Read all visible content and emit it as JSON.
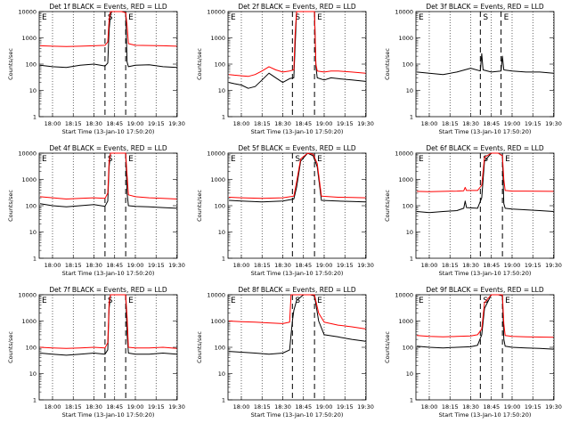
{
  "chart_data": [
    {
      "type": "line",
      "title": "Det 1f BLACK = Events, RED = LLD",
      "xlabel": "Start Time (13-Jan-10 17:50:20)",
      "ylabel": "Counts/sec",
      "yscale": "log",
      "ylim": [
        1,
        10000
      ],
      "yticks": [
        "1",
        "10",
        "100",
        "1000",
        "10000"
      ],
      "xticks": [
        "18:00",
        "18:15",
        "18:30",
        "18:45",
        "19:00",
        "19:15",
        "19:30"
      ],
      "markers": [
        "E",
        "S",
        "E"
      ],
      "series": [
        {
          "name": "BLACK = Events",
          "color": "#000000",
          "x": [
            "17:51",
            "18:00",
            "18:10",
            "18:20",
            "18:30",
            "18:38",
            "18:40",
            "18:41",
            "18:42",
            "18:43",
            "18:50",
            "18:53",
            "18:54",
            "18:55",
            "19:00",
            "19:10",
            "19:20",
            "19:30"
          ],
          "y": [
            90,
            80,
            75,
            90,
            100,
            85,
            110,
            2000,
            8000,
            11000,
            12000,
            10000,
            120,
            80,
            90,
            95,
            80,
            75
          ]
        },
        {
          "name": "RED = LLD",
          "color": "#ff0000",
          "x": [
            "17:51",
            "18:00",
            "18:10",
            "18:20",
            "18:30",
            "18:38",
            "18:40",
            "18:41",
            "18:42",
            "18:43",
            "18:50",
            "18:53",
            "18:54",
            "18:55",
            "19:00",
            "19:10",
            "19:20",
            "19:30"
          ],
          "y": [
            500,
            480,
            470,
            480,
            500,
            520,
            700,
            5000,
            10000,
            11000,
            12000,
            9000,
            3000,
            600,
            520,
            510,
            500,
            480
          ]
        }
      ]
    },
    {
      "type": "line",
      "title": "Det 2f BLACK = Events, RED = LLD",
      "xlabel": "Start Time (13-Jan-10 17:50:20)",
      "ylabel": "Counts/sec",
      "yscale": "log",
      "ylim": [
        1,
        10000
      ],
      "yticks": [
        "1",
        "10",
        "100",
        "1000",
        "10000"
      ],
      "xticks": [
        "18:00",
        "18:15",
        "18:30",
        "18:45",
        "19:00",
        "19:15",
        "19:30"
      ],
      "markers": [
        "E",
        "S",
        "E"
      ],
      "series": [
        {
          "name": "BLACK = Events",
          "color": "#000000",
          "x": [
            "17:51",
            "17:55",
            "18:00",
            "18:05",
            "18:10",
            "18:15",
            "18:20",
            "18:25",
            "18:30",
            "18:35",
            "18:38",
            "18:39",
            "18:40",
            "18:53",
            "18:54",
            "18:55",
            "19:00",
            "19:05",
            "19:10",
            "19:20",
            "19:30"
          ],
          "y": [
            20,
            18,
            16,
            12,
            14,
            25,
            45,
            30,
            20,
            28,
            30,
            500,
            12000,
            12000,
            80,
            30,
            25,
            30,
            28,
            25,
            22
          ]
        },
        {
          "name": "RED = LLD",
          "color": "#ff0000",
          "x": [
            "17:51",
            "17:55",
            "18:00",
            "18:05",
            "18:10",
            "18:15",
            "18:20",
            "18:25",
            "18:30",
            "18:35",
            "18:38",
            "18:39",
            "18:40",
            "18:53",
            "18:54",
            "18:55",
            "19:00",
            "19:05",
            "19:10",
            "19:20",
            "19:30"
          ],
          "y": [
            40,
            38,
            36,
            34,
            40,
            55,
            80,
            60,
            50,
            55,
            60,
            1500,
            12000,
            12000,
            100,
            55,
            50,
            55,
            55,
            50,
            45
          ]
        }
      ]
    },
    {
      "type": "line",
      "title": "Det 3f BLACK = Events, RED = LLD",
      "xlabel": "Start Time (13-Jan-10 17:50:20)",
      "ylabel": "Counts/sec",
      "yscale": "log",
      "ylim": [
        1,
        10000
      ],
      "yticks": [
        "1",
        "10",
        "100",
        "1000",
        "10000"
      ],
      "xticks": [
        "18:00",
        "18:15",
        "18:30",
        "18:45",
        "19:00",
        "19:15",
        "19:30"
      ],
      "markers": [
        "E",
        "S",
        "E"
      ],
      "series": [
        {
          "name": "BLACK = Events",
          "color": "#000000",
          "x": [
            "17:51",
            "18:00",
            "18:10",
            "18:20",
            "18:30",
            "18:37",
            "18:38",
            "18:39",
            "18:45",
            "18:52",
            "18:53",
            "18:54",
            "19:00",
            "19:10",
            "19:20",
            "19:30"
          ],
          "y": [
            50,
            45,
            40,
            50,
            70,
            55,
            250,
            60,
            50,
            55,
            200,
            60,
            55,
            50,
            50,
            45
          ]
        }
      ]
    },
    {
      "type": "line",
      "title": "Det 4f BLACK = Events, RED = LLD",
      "xlabel": "Start Time (13-Jan-10 17:50:20)",
      "ylabel": "Counts/sec",
      "yscale": "log",
      "ylim": [
        1,
        10000
      ],
      "yticks": [
        "1",
        "10",
        "100",
        "1000",
        "10000"
      ],
      "xticks": [
        "18:00",
        "18:15",
        "18:30",
        "18:45",
        "19:00",
        "19:15",
        "19:30"
      ],
      "markers": [
        "E",
        "S",
        "E"
      ],
      "series": [
        {
          "name": "BLACK = Events",
          "color": "#000000",
          "x": [
            "17:51",
            "18:00",
            "18:10",
            "18:20",
            "18:30",
            "18:38",
            "18:40",
            "18:41",
            "18:42",
            "18:50",
            "18:53",
            "18:54",
            "18:55",
            "19:00",
            "19:10",
            "19:20",
            "19:30"
          ],
          "y": [
            120,
            100,
            90,
            100,
            110,
            95,
            150,
            3000,
            11000,
            12000,
            10000,
            300,
            100,
            95,
            90,
            85,
            80
          ]
        },
        {
          "name": "RED = LLD",
          "color": "#ff0000",
          "x": [
            "17:51",
            "18:00",
            "18:10",
            "18:20",
            "18:30",
            "18:38",
            "18:40",
            "18:41",
            "18:42",
            "18:50",
            "18:53",
            "18:54",
            "18:55",
            "19:00",
            "19:10",
            "19:20",
            "19:30"
          ],
          "y": [
            220,
            200,
            180,
            190,
            200,
            190,
            300,
            5000,
            11000,
            12000,
            10000,
            1500,
            260,
            220,
            200,
            190,
            180
          ]
        }
      ]
    },
    {
      "type": "line",
      "title": "Det 5f BLACK = Events, RED = LLD",
      "xlabel": "Start Time (13-Jan-10 17:50:20)",
      "ylabel": "Counts/sec",
      "yscale": "log",
      "ylim": [
        1,
        10000
      ],
      "yticks": [
        "1",
        "10",
        "100",
        "1000",
        "10000"
      ],
      "xticks": [
        "18:00",
        "18:15",
        "18:30",
        "18:45",
        "19:00",
        "19:15",
        "19:30"
      ],
      "markers": [
        "E",
        "S",
        "E"
      ],
      "series": [
        {
          "name": "BLACK = Events",
          "color": "#000000",
          "x": [
            "17:51",
            "18:00",
            "18:15",
            "18:30",
            "18:38",
            "18:40",
            "18:43",
            "18:48",
            "18:52",
            "18:55",
            "18:58",
            "19:10",
            "19:20",
            "19:30"
          ],
          "y": [
            160,
            150,
            140,
            150,
            180,
            500,
            5000,
            10000,
            8000,
            3000,
            160,
            150,
            145,
            140
          ]
        },
        {
          "name": "RED = LLD",
          "color": "#ff0000",
          "x": [
            "17:51",
            "18:00",
            "18:15",
            "18:30",
            "18:38",
            "18:40",
            "18:43",
            "18:48",
            "18:52",
            "18:55",
            "18:58",
            "19:10",
            "19:20",
            "19:30"
          ],
          "y": [
            210,
            200,
            190,
            200,
            230,
            800,
            6000,
            11000,
            9000,
            4000,
            230,
            210,
            205,
            200
          ]
        }
      ]
    },
    {
      "type": "line",
      "title": "Det 6f BLACK = Events, RED = LLD",
      "xlabel": "Start Time (13-Jan-10 17:50:20)",
      "ylabel": "Counts/sec",
      "yscale": "log",
      "ylim": [
        1,
        10000
      ],
      "yticks": [
        "1",
        "10",
        "100",
        "1000",
        "10000"
      ],
      "xticks": [
        "18:00",
        "18:15",
        "18:30",
        "18:45",
        "19:00",
        "19:15",
        "19:30"
      ],
      "markers": [
        "E",
        "S",
        "E"
      ],
      "series": [
        {
          "name": "BLACK = Events",
          "color": "#000000",
          "x": [
            "17:51",
            "18:00",
            "18:10",
            "18:20",
            "18:25",
            "18:26",
            "18:27",
            "18:35",
            "18:38",
            "18:40",
            "18:45",
            "18:50",
            "18:53",
            "18:54",
            "18:55",
            "19:00",
            "19:10",
            "19:20",
            "19:30"
          ],
          "y": [
            60,
            55,
            60,
            65,
            80,
            150,
            85,
            80,
            200,
            5000,
            10000,
            10000,
            8000,
            120,
            80,
            75,
            70,
            65,
            60
          ]
        },
        {
          "name": "RED = LLD",
          "color": "#ff0000",
          "x": [
            "17:51",
            "18:00",
            "18:10",
            "18:20",
            "18:25",
            "18:26",
            "18:27",
            "18:35",
            "18:38",
            "18:40",
            "18:45",
            "18:50",
            "18:53",
            "18:54",
            "18:55",
            "19:00",
            "19:10",
            "19:20",
            "19:30"
          ],
          "y": [
            350,
            340,
            350,
            360,
            370,
            500,
            380,
            380,
            600,
            7000,
            11000,
            10000,
            8000,
            1000,
            380,
            360,
            360,
            355,
            350
          ]
        }
      ]
    },
    {
      "type": "line",
      "title": "Det 7f BLACK = Events, RED = LLD",
      "xlabel": "Start Time (13-Jan-10 17:50:20)",
      "ylabel": "Counts/sec",
      "yscale": "log",
      "ylim": [
        1,
        10000
      ],
      "yticks": [
        "1",
        "10",
        "100",
        "1000",
        "10000"
      ],
      "xticks": [
        "18:00",
        "18:15",
        "18:30",
        "18:45",
        "19:00",
        "19:15",
        "19:30"
      ],
      "markers": [
        "E",
        "S",
        "E"
      ],
      "series": [
        {
          "name": "BLACK = Events",
          "color": "#000000",
          "x": [
            "17:51",
            "18:00",
            "18:10",
            "18:20",
            "18:30",
            "18:38",
            "18:40",
            "18:41",
            "18:42",
            "18:50",
            "18:53",
            "18:54",
            "18:55",
            "19:00",
            "19:10",
            "19:20",
            "19:30"
          ],
          "y": [
            60,
            55,
            50,
            55,
            60,
            55,
            80,
            3000,
            11000,
            12000,
            10000,
            300,
            60,
            55,
            55,
            60,
            55
          ]
        },
        {
          "name": "RED = LLD",
          "color": "#ff0000",
          "x": [
            "17:51",
            "18:00",
            "18:10",
            "18:20",
            "18:30",
            "18:38",
            "18:40",
            "18:41",
            "18:42",
            "18:50",
            "18:53",
            "18:54",
            "18:55",
            "19:00",
            "19:10",
            "19:20",
            "19:30"
          ],
          "y": [
            100,
            95,
            90,
            95,
            100,
            95,
            150,
            5000,
            11000,
            12000,
            10000,
            1500,
            100,
            95,
            95,
            100,
            90
          ]
        }
      ]
    },
    {
      "type": "line",
      "title": "Det 8f BLACK = Events, RED = LLD",
      "xlabel": "Start Time (13-Jan-10 17:50:20)",
      "ylabel": "Counts/sec",
      "yscale": "log",
      "ylim": [
        1,
        10000
      ],
      "yticks": [
        "1",
        "10",
        "100",
        "1000",
        "10000"
      ],
      "xticks": [
        "18:00",
        "18:15",
        "18:30",
        "18:45",
        "19:00",
        "19:15",
        "19:30"
      ],
      "markers": [
        "E",
        "S",
        "E"
      ],
      "series": [
        {
          "name": "BLACK = Events",
          "color": "#000000",
          "x": [
            "17:51",
            "18:00",
            "18:10",
            "18:20",
            "18:30",
            "18:35",
            "18:36",
            "18:37",
            "18:38",
            "18:40",
            "18:45",
            "18:50",
            "18:53",
            "18:56",
            "19:00",
            "19:10",
            "19:20",
            "19:30"
          ],
          "y": [
            70,
            65,
            60,
            55,
            60,
            80,
            300,
            1000,
            2500,
            6000,
            10000,
            11000,
            9000,
            1000,
            300,
            250,
            200,
            170
          ]
        },
        {
          "name": "RED = LLD",
          "color": "#ff0000",
          "x": [
            "17:51",
            "18:00",
            "18:10",
            "18:20",
            "18:30",
            "18:35",
            "18:36",
            "18:37",
            "18:38",
            "18:40",
            "18:45",
            "18:50",
            "18:53",
            "18:56",
            "19:00",
            "19:10",
            "19:20",
            "19:30"
          ],
          "y": [
            1000,
            950,
            900,
            850,
            800,
            900,
            12000,
            12000,
            12000,
            12000,
            12000,
            12000,
            10000,
            2000,
            900,
            700,
            600,
            500
          ]
        }
      ]
    },
    {
      "type": "line",
      "title": "Det 9f BLACK = Events, RED = LLD",
      "xlabel": "Start Time (13-Jan-10 17:50:20)",
      "ylabel": "Counts/sec",
      "yscale": "log",
      "ylim": [
        1,
        10000
      ],
      "yticks": [
        "1",
        "10",
        "100",
        "1000",
        "10000"
      ],
      "xticks": [
        "18:00",
        "18:15",
        "18:30",
        "18:45",
        "19:00",
        "19:15",
        "19:30"
      ],
      "markers": [
        "E",
        "S",
        "E"
      ],
      "series": [
        {
          "name": "BLACK = Events",
          "color": "#000000",
          "x": [
            "17:51",
            "18:00",
            "18:10",
            "18:20",
            "18:30",
            "18:35",
            "18:38",
            "18:40",
            "18:45",
            "18:50",
            "18:53",
            "18:54",
            "18:55",
            "19:00",
            "19:10",
            "19:20",
            "19:30"
          ],
          "y": [
            110,
            100,
            95,
            100,
            105,
            120,
            300,
            3000,
            10000,
            11000,
            9000,
            200,
            110,
            100,
            95,
            90,
            85
          ]
        },
        {
          "name": "RED = LLD",
          "color": "#ff0000",
          "x": [
            "17:51",
            "18:00",
            "18:10",
            "18:20",
            "18:30",
            "18:35",
            "18:38",
            "18:40",
            "18:45",
            "18:50",
            "18:53",
            "18:54",
            "18:55",
            "19:00",
            "19:10",
            "19:20",
            "19:30"
          ],
          "y": [
            280,
            260,
            250,
            260,
            270,
            300,
            500,
            5000,
            11000,
            12000,
            10000,
            800,
            280,
            260,
            250,
            245,
            240
          ]
        }
      ]
    }
  ]
}
